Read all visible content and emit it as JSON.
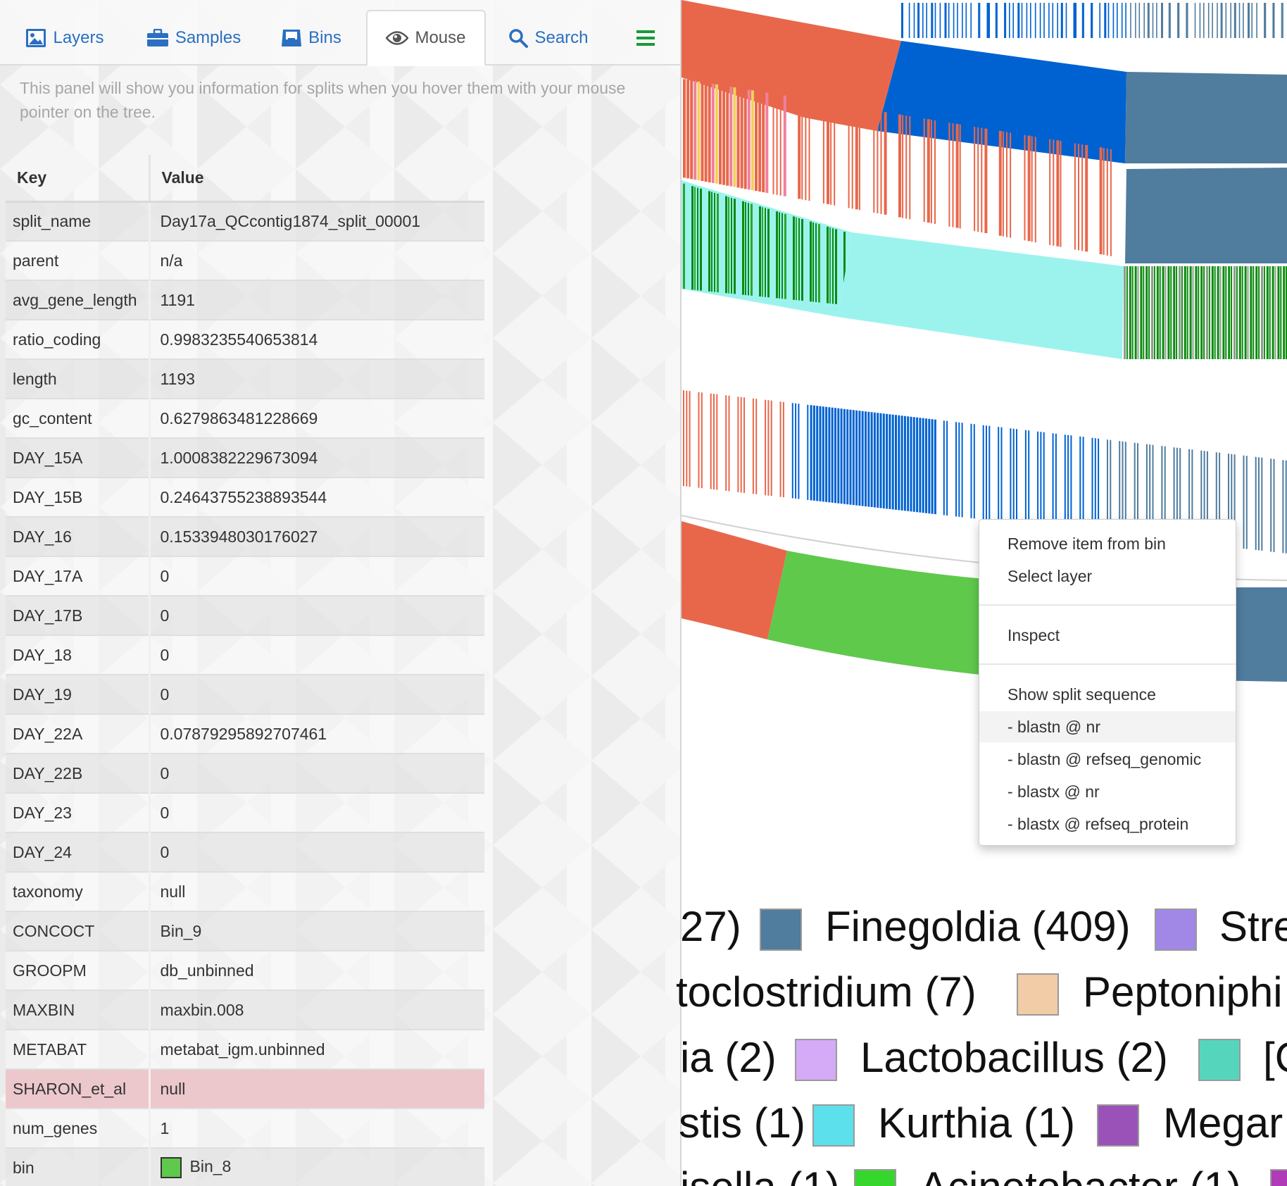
{
  "tabs": [
    {
      "label": "Layers",
      "icon": "image-icon",
      "active": false
    },
    {
      "label": "Samples",
      "icon": "briefcase-icon",
      "active": false
    },
    {
      "label": "Bins",
      "icon": "bin-box-icon",
      "active": false
    },
    {
      "label": "Mouse",
      "icon": "eye-icon",
      "active": true
    },
    {
      "label": "Search",
      "icon": "search-icon",
      "active": false
    },
    {
      "label": "",
      "icon": "hamburger-menu-icon",
      "active": false
    }
  ],
  "panel": {
    "info_text": "This panel will show you information for splits when you hover them with your mouse pointer on the tree.",
    "table": {
      "header_key": "Key",
      "header_value": "Value",
      "rows": [
        {
          "key": "split_name",
          "value": "Day17a_QCcontig1874_split_00001"
        },
        {
          "key": "parent",
          "value": "n/a"
        },
        {
          "key": "avg_gene_length",
          "value": "1191"
        },
        {
          "key": "ratio_coding",
          "value": "0.9983235540653814"
        },
        {
          "key": "length",
          "value": "1193"
        },
        {
          "key": "gc_content",
          "value": "0.6279863481228669"
        },
        {
          "key": "DAY_15A",
          "value": "1.0008382229673094"
        },
        {
          "key": "DAY_15B",
          "value": "0.24643755238893544"
        },
        {
          "key": "DAY_16",
          "value": "0.1533948030176027"
        },
        {
          "key": "DAY_17A",
          "value": "0"
        },
        {
          "key": "DAY_17B",
          "value": "0"
        },
        {
          "key": "DAY_18",
          "value": "0"
        },
        {
          "key": "DAY_19",
          "value": "0"
        },
        {
          "key": "DAY_22A",
          "value": "0.07879295892707461"
        },
        {
          "key": "DAY_22B",
          "value": "0"
        },
        {
          "key": "DAY_23",
          "value": "0"
        },
        {
          "key": "DAY_24",
          "value": "0"
        },
        {
          "key": "taxonomy",
          "value": "null"
        },
        {
          "key": "CONCOCT",
          "value": "Bin_9"
        },
        {
          "key": "GROOPM",
          "value": "db_unbinned"
        },
        {
          "key": "MAXBIN",
          "value": "maxbin.008"
        },
        {
          "key": "METABAT",
          "value": "metabat_igm.unbinned"
        },
        {
          "key": "SHARON_et_al",
          "value": "null",
          "highlight": true
        },
        {
          "key": "num_genes",
          "value": "1"
        },
        {
          "key": "bin",
          "value": "Bin_8",
          "swatch": "#5fc94c"
        }
      ]
    }
  },
  "context_menu": {
    "items": [
      {
        "label": "Remove item from bin"
      },
      {
        "label": "Select layer"
      },
      {
        "label": "Inspect"
      },
      {
        "label": "Show split sequence"
      },
      {
        "label": "- blastn @ nr",
        "hover": true
      },
      {
        "label": "- blastn @ refseq_genomic"
      },
      {
        "label": "- blastx @ nr"
      },
      {
        "label": "- blastx @ refseq_protein"
      }
    ]
  },
  "legend": [
    {
      "label": "27)"
    },
    {
      "label": "Finegoldia (409)",
      "color": "#507c9e"
    },
    {
      "label": "Stre",
      "color": "#a187e6"
    },
    {
      "label": "toclostridium (7)"
    },
    {
      "label": "Peptoniphi",
      "color": "#f2cba7"
    },
    {
      "label": "ia (2)"
    },
    {
      "label": "Lactobacillus (2)",
      "color": "#d5aaf7"
    },
    {
      "label": "[C",
      "color": "#55d6bc"
    },
    {
      "label": "stis (1)"
    },
    {
      "label": "Kurthia (1)",
      "color": "#5be0ec"
    },
    {
      "label": "Megar",
      "color": "#9a52b8"
    },
    {
      "label": "isella (1)"
    },
    {
      "label": "Acinetobacter (1)",
      "color": "#37d62c"
    },
    {
      "label": "",
      "color": "#b03bb9"
    }
  ],
  "colors": {
    "accent": "#2a6fc1",
    "orange": "#e8674b",
    "blue": "#0062d1",
    "steel": "#507c9e",
    "cyan": "#9cf3ee",
    "dark_green": "#0c8a10",
    "green": "#5fc94c",
    "highlight_row": "#ecc8cd"
  }
}
